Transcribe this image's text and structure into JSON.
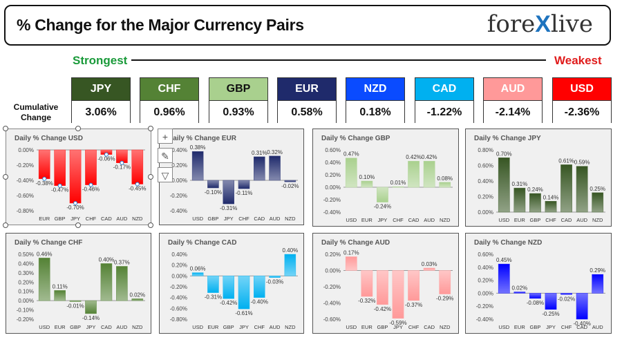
{
  "header": {
    "title": "% Change for the Major Currency Pairs",
    "logo_left": "fore",
    "logo_x": "X",
    "logo_right": "live"
  },
  "strongest_label": "Strongest",
  "weakest_label": "Weakest",
  "cumulative_label": "Cumulative Change",
  "currencies": [
    {
      "code": "JPY",
      "value": "3.06%",
      "color": "#375623",
      "text_color": "#ffffff"
    },
    {
      "code": "CHF",
      "value": "0.96%",
      "color": "#548235",
      "text_color": "#ffffff"
    },
    {
      "code": "GBP",
      "value": "0.93%",
      "color": "#a9d08e",
      "text_color": "#111111"
    },
    {
      "code": "EUR",
      "value": "0.58%",
      "color": "#1f2a6b",
      "text_color": "#ffffff"
    },
    {
      "code": "NZD",
      "value": "0.18%",
      "color": "#0a4bff",
      "text_color": "#ffffff"
    },
    {
      "code": "CAD",
      "value": "-1.22%",
      "color": "#00b0f0",
      "text_color": "#ffffff"
    },
    {
      "code": "AUD",
      "value": "-2.14%",
      "color": "#ff9999",
      "text_color": "#ffffff"
    },
    {
      "code": "USD",
      "value": "-2.36%",
      "color": "#ff0000",
      "text_color": "#ffffff"
    }
  ],
  "chart_data": [
    {
      "type": "bar",
      "title": "Daily % Change USD",
      "color": "#ff0000",
      "categories": [
        "EUR",
        "GBP",
        "JPY",
        "CHF",
        "CAD",
        "AUD",
        "NZD"
      ],
      "values": [
        -0.38,
        -0.47,
        -0.7,
        -0.46,
        -0.06,
        -0.17,
        -0.45
      ],
      "labels": [
        "-0.38%",
        "-0.47%",
        "-0.70%",
        "-0.46%",
        "-0.06%",
        "-0.17%",
        "-0.45%"
      ],
      "ticks": [
        "0.00%",
        "-0.20%",
        "-0.40%",
        "-0.60%",
        "-0.80%"
      ],
      "ylim": [
        -0.8,
        0.0
      ]
    },
    {
      "type": "bar",
      "title": "Daily % Change EUR",
      "color": "#1f2a6b",
      "categories": [
        "USD",
        "GBP",
        "JPY",
        "CHF",
        "CAD",
        "AUD",
        "NZD"
      ],
      "values": [
        0.38,
        -0.1,
        -0.31,
        -0.11,
        0.31,
        0.32,
        -0.02
      ],
      "labels": [
        "0.38%",
        "-0.10%",
        "-0.31%",
        "-0.11%",
        "0.31%",
        "0.32%",
        "-0.02%"
      ],
      "ticks": [
        "0.40%",
        "0.20%",
        "0.00%",
        "-0.20%",
        "-0.40%"
      ],
      "ylim": [
        -0.4,
        0.4
      ]
    },
    {
      "type": "bar",
      "title": "Daily % Change GBP",
      "color": "#a9d08e",
      "categories": [
        "USD",
        "EUR",
        "JPY",
        "CHF",
        "CAD",
        "AUD",
        "NZD"
      ],
      "values": [
        0.47,
        0.1,
        -0.24,
        0.01,
        0.42,
        0.42,
        0.08
      ],
      "labels": [
        "0.47%",
        "0.10%",
        "-0.24%",
        "0.01%",
        "0.42%",
        "0.42%",
        "0.08%"
      ],
      "ticks": [
        "0.60%",
        "0.40%",
        "0.20%",
        "0.00%",
        "-0.20%",
        "-0.40%"
      ],
      "ylim": [
        -0.4,
        0.6
      ]
    },
    {
      "type": "bar",
      "title": "Daily % Change JPY",
      "color": "#375623",
      "categories": [
        "USD",
        "EUR",
        "GBP",
        "CHF",
        "CAD",
        "AUD",
        "NZD"
      ],
      "values": [
        0.7,
        0.31,
        0.24,
        0.14,
        0.61,
        0.59,
        0.25
      ],
      "labels": [
        "0.70%",
        "0.31%",
        "0.24%",
        "0.14%",
        "0.61%",
        "0.59%",
        "0.25%"
      ],
      "ticks": [
        "0.80%",
        "0.60%",
        "0.40%",
        "0.20%",
        "0.00%"
      ],
      "ylim": [
        0.0,
        0.8
      ]
    },
    {
      "type": "bar",
      "title": "Daily % Change CHF",
      "color": "#548235",
      "categories": [
        "USD",
        "EUR",
        "GBP",
        "JPY",
        "CAD",
        "AUD",
        "NZD"
      ],
      "values": [
        0.46,
        0.11,
        -0.01,
        -0.14,
        0.4,
        0.37,
        0.02
      ],
      "labels": [
        "0.46%",
        "0.11%",
        "-0.01%",
        "-0.14%",
        "0.40%",
        "0.37%",
        "0.02%"
      ],
      "ticks": [
        "0.50%",
        "0.40%",
        "0.30%",
        "0.20%",
        "0.10%",
        "0.00%",
        "-0.10%",
        "-0.20%"
      ],
      "ylim": [
        -0.2,
        0.5
      ]
    },
    {
      "type": "bar",
      "title": "Daily % Change CAD",
      "color": "#00b0f0",
      "categories": [
        "USD",
        "EUR",
        "GBP",
        "JPY",
        "CHF",
        "AUD",
        "NZD"
      ],
      "values": [
        0.06,
        -0.31,
        -0.42,
        -0.61,
        -0.4,
        -0.03,
        0.4
      ],
      "labels": [
        "0.06%",
        "-0.31%",
        "-0.42%",
        "-0.61%",
        "-0.40%",
        "-0.03%",
        "0.40%"
      ],
      "ticks": [
        "0.40%",
        "0.20%",
        "0.00%",
        "-0.20%",
        "-0.40%",
        "-0.60%",
        "-0.80%"
      ],
      "ylim": [
        -0.8,
        0.4
      ]
    },
    {
      "type": "bar",
      "title": "Daily % Change AUD",
      "color": "#ff9999",
      "categories": [
        "USD",
        "EUR",
        "GBP",
        "JPY",
        "CHF",
        "CAD",
        "NZD"
      ],
      "values": [
        0.17,
        -0.32,
        -0.42,
        -0.59,
        -0.37,
        0.03,
        -0.29
      ],
      "labels": [
        "0.17%",
        "-0.32%",
        "-0.42%",
        "-0.59%",
        "-0.37%",
        "0.03%",
        "-0.29%"
      ],
      "ticks": [
        "0.20%",
        "0.00%",
        "-0.20%",
        "-0.40%",
        "-0.60%"
      ],
      "ylim": [
        -0.6,
        0.2
      ]
    },
    {
      "type": "bar",
      "title": "Daily % Change NZD",
      "color": "#0000ff",
      "categories": [
        "USD",
        "EUR",
        "GBP",
        "JPY",
        "CHF",
        "CAD",
        "AUD"
      ],
      "values": [
        0.45,
        0.02,
        -0.08,
        -0.25,
        -0.02,
        -0.4,
        0.29
      ],
      "labels": [
        "0.45%",
        "0.02%",
        "-0.08%",
        "-0.25%",
        "-0.02%",
        "-0.40%",
        "0.29%"
      ],
      "ticks": [
        "0.60%",
        "0.40%",
        "0.20%",
        "0.00%",
        "-0.20%",
        "-0.40%"
      ],
      "ylim": [
        -0.4,
        0.6
      ]
    }
  ]
}
